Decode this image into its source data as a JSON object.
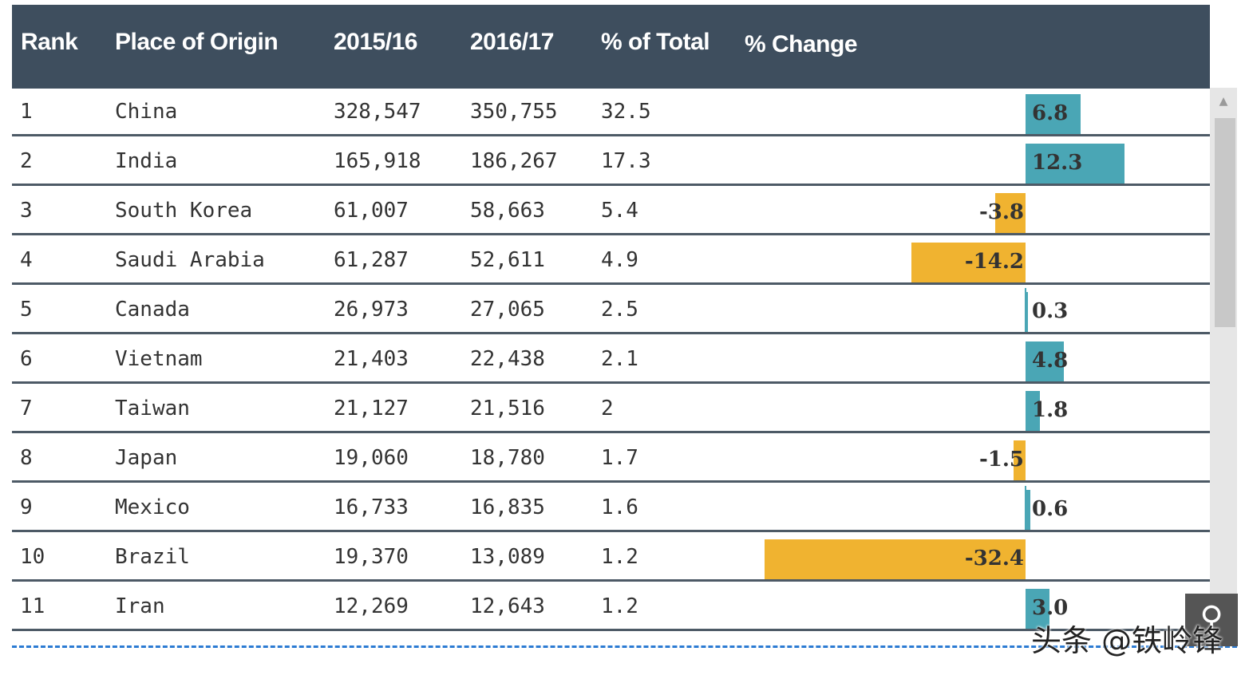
{
  "headers": {
    "rank": "Rank",
    "origin": "Place of Origin",
    "y2015": "2015/16",
    "y2016": "2016/17",
    "pct_total": "% of Total",
    "pct_change": "% Change"
  },
  "rows": [
    {
      "rank": "1",
      "origin": "China",
      "y2015": "328,547",
      "y2016": "350,755",
      "pct_total": "32.5",
      "change": "6.8",
      "change_value": 6.8
    },
    {
      "rank": "2",
      "origin": "India",
      "y2015": "165,918",
      "y2016": "186,267",
      "pct_total": "17.3",
      "change": "12.3",
      "change_value": 12.3
    },
    {
      "rank": "3",
      "origin": "South Korea",
      "y2015": "61,007",
      "y2016": "58,663",
      "pct_total": "5.4",
      "change": "-3.8",
      "change_value": -3.8
    },
    {
      "rank": "4",
      "origin": "Saudi Arabia",
      "y2015": "61,287",
      "y2016": "52,611",
      "pct_total": "4.9",
      "change": "-14.2",
      "change_value": -14.2
    },
    {
      "rank": "5",
      "origin": "Canada",
      "y2015": "26,973",
      "y2016": "27,065",
      "pct_total": "2.5",
      "change": "0.3",
      "change_value": 0.3
    },
    {
      "rank": "6",
      "origin": "Vietnam",
      "y2015": "21,403",
      "y2016": "22,438",
      "pct_total": "2.1",
      "change": "4.8",
      "change_value": 4.8
    },
    {
      "rank": "7",
      "origin": "Taiwan",
      "y2015": "21,127",
      "y2016": "21,516",
      "pct_total": "2",
      "change": "1.8",
      "change_value": 1.8
    },
    {
      "rank": "8",
      "origin": "Japan",
      "y2015": "19,060",
      "y2016": "18,780",
      "pct_total": "1.7",
      "change": "-1.5",
      "change_value": -1.5
    },
    {
      "rank": "9",
      "origin": "Mexico",
      "y2015": "16,733",
      "y2016": "16,835",
      "pct_total": "1.6",
      "change": "0.6",
      "change_value": 0.6
    },
    {
      "rank": "10",
      "origin": "Brazil",
      "y2015": "19,370",
      "y2016": "13,089",
      "pct_total": "1.2",
      "change": "-32.4",
      "change_value": -32.4
    },
    {
      "rank": "11",
      "origin": "Iran",
      "y2015": "12,269",
      "y2016": "12,643",
      "pct_total": "1.2",
      "change": "3.0",
      "change_value": 3.0
    }
  ],
  "colors": {
    "header_bg": "#3e4e5e",
    "positive_bar": "#4aa6b5",
    "negative_bar": "#f0b330"
  },
  "icons": {
    "scroll_up": "scroll-up-arrow-icon",
    "zoom": "magnifier-icon"
  },
  "watermark": "头条 @铁岭锋"
}
